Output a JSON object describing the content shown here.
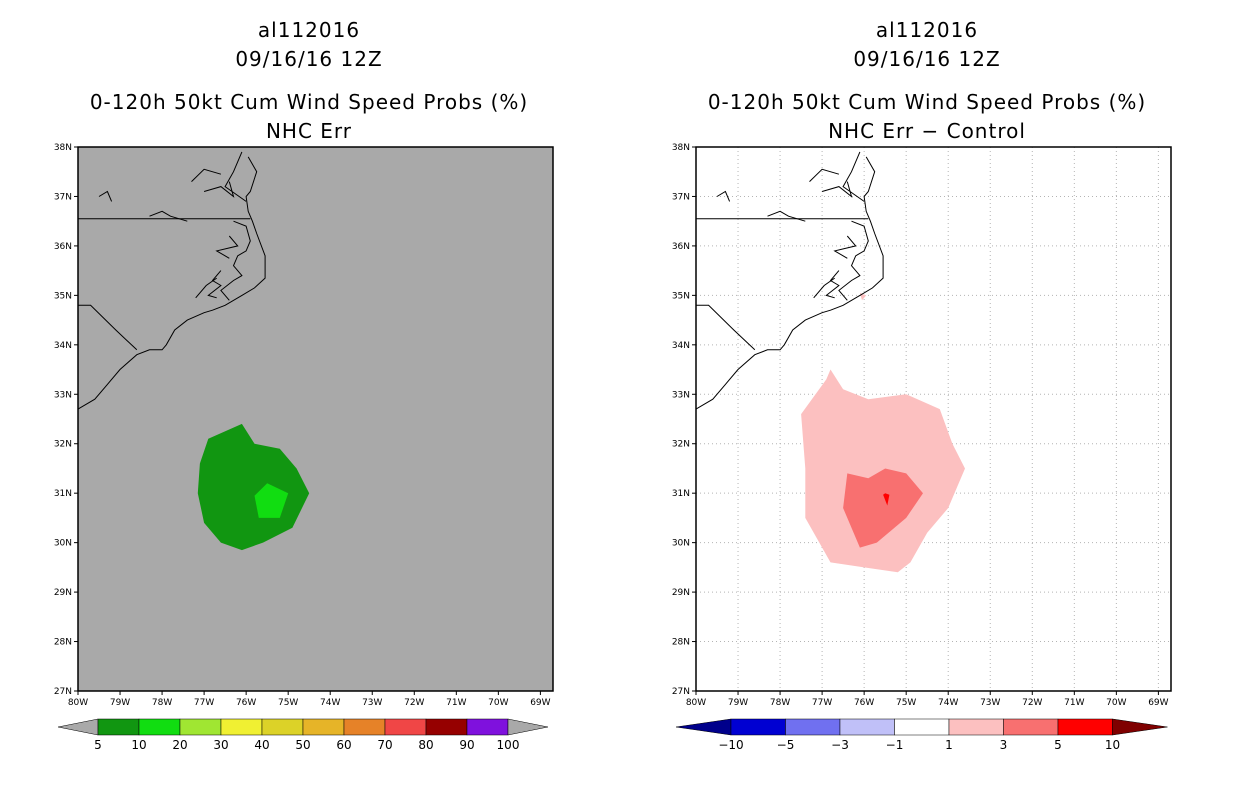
{
  "panels": [
    {
      "storm_id": "al112016",
      "date_time": "09/16/16 12Z",
      "title": "0-120h 50kt Cum Wind Speed Probs (%)",
      "subtitle": "NHC Err",
      "background_color": "#a9a9a9",
      "gridlines": false,
      "colorbar": {
        "labels": [
          "5",
          "10",
          "20",
          "30",
          "40",
          "50",
          "60",
          "70",
          "80",
          "90",
          "100"
        ],
        "colors": [
          "#119611",
          "#11dd11",
          "#a0e632",
          "#f0f032",
          "#dcd228",
          "#e6b428",
          "#e68228",
          "#f04646",
          "#960000",
          "#7f11dd"
        ],
        "end_color": "#a9a9a9"
      }
    },
    {
      "storm_id": "al112016",
      "date_time": "09/16/16 12Z",
      "title": "0-120h 50kt Cum Wind Speed Probs (%)",
      "subtitle": "NHC Err − Control",
      "background_color": "#ffffff",
      "gridlines": true,
      "colorbar": {
        "labels": [
          "−10",
          "−5",
          "−3",
          "−1",
          "1",
          "3",
          "5",
          "10"
        ],
        "colors": [
          "#0000d2",
          "#7070f0",
          "#c0c0f8",
          "#ffffff",
          "#fcc0c0",
          "#f87070",
          "#ff0000"
        ],
        "low_end_color": "#00008b",
        "high_end_color": "#7f0000"
      }
    }
  ],
  "axes": {
    "lat_labels": [
      "38N",
      "37N",
      "36N",
      "35N",
      "34N",
      "33N",
      "32N",
      "31N",
      "30N",
      "29N",
      "28N",
      "27N"
    ],
    "lon_labels": [
      "80W",
      "79W",
      "78W",
      "77W",
      "76W",
      "75W",
      "74W",
      "73W",
      "72W",
      "71W",
      "70W",
      "69W"
    ],
    "lat_range": [
      27,
      38
    ],
    "lon_range": [
      -80,
      -68.7
    ]
  },
  "map_data": {
    "left_contours": [
      {
        "level": "5-10%",
        "color": "#119611",
        "points": [
          [
            -76.9,
            32.1
          ],
          [
            -76.1,
            32.4
          ],
          [
            -75.8,
            32.0
          ],
          [
            -75.2,
            31.9
          ],
          [
            -74.8,
            31.5
          ],
          [
            -74.5,
            31.0
          ],
          [
            -74.9,
            30.3
          ],
          [
            -75.6,
            30.0
          ],
          [
            -76.1,
            29.85
          ],
          [
            -76.6,
            30.0
          ],
          [
            -77.0,
            30.4
          ],
          [
            -77.15,
            31.0
          ],
          [
            -77.1,
            31.6
          ]
        ]
      },
      {
        "level": "10-20%",
        "color": "#11dd11",
        "points": [
          [
            -75.8,
            30.95
          ],
          [
            -75.5,
            31.2
          ],
          [
            -75.0,
            31.0
          ],
          [
            -75.2,
            30.5
          ],
          [
            -75.7,
            30.5
          ]
        ]
      }
    ],
    "right_contours": [
      {
        "level": "1-3",
        "color": "#fcc0c0",
        "points": [
          [
            -77.5,
            32.6
          ],
          [
            -76.9,
            33.3
          ],
          [
            -76.8,
            33.5
          ],
          [
            -76.5,
            33.1
          ],
          [
            -75.9,
            32.9
          ],
          [
            -75.0,
            33.0
          ],
          [
            -74.2,
            32.7
          ],
          [
            -73.9,
            32.0
          ],
          [
            -73.6,
            31.5
          ],
          [
            -74.0,
            30.7
          ],
          [
            -74.5,
            30.2
          ],
          [
            -74.9,
            29.6
          ],
          [
            -75.2,
            29.4
          ],
          [
            -76.0,
            29.5
          ],
          [
            -76.8,
            29.6
          ],
          [
            -77.4,
            30.5
          ],
          [
            -77.4,
            31.5
          ]
        ]
      },
      {
        "level": "3-5",
        "color": "#f87070",
        "points": [
          [
            -76.4,
            31.4
          ],
          [
            -75.9,
            31.3
          ],
          [
            -75.5,
            31.5
          ],
          [
            -75.0,
            31.4
          ],
          [
            -74.6,
            31.0
          ],
          [
            -75.0,
            30.5
          ],
          [
            -75.7,
            30.0
          ],
          [
            -76.1,
            29.9
          ],
          [
            -76.5,
            30.7
          ]
        ]
      },
      {
        "level": "5-10",
        "color": "#ff0000",
        "points": [
          [
            -75.5,
            31.0
          ],
          [
            -75.4,
            30.97
          ],
          [
            -75.45,
            30.75
          ],
          [
            -75.55,
            30.97
          ]
        ]
      },
      {
        "level": "1-3",
        "color": "#fcc0c0",
        "points": [
          [
            -76.1,
            35.05
          ],
          [
            -75.95,
            35.0
          ],
          [
            -76.05,
            34.9
          ]
        ]
      }
    ],
    "coastline": [
      [
        [
          -75.95,
          37.8
        ],
        [
          -75.75,
          37.5
        ],
        [
          -75.9,
          37.1
        ],
        [
          -76.0,
          37.0
        ],
        [
          -75.95,
          36.7
        ],
        [
          -75.85,
          36.5
        ],
        [
          -75.75,
          36.25
        ],
        [
          -75.55,
          35.8
        ],
        [
          -75.55,
          35.5
        ],
        [
          -75.55,
          35.35
        ],
        [
          -75.8,
          35.15
        ],
        [
          -76.1,
          35.0
        ],
        [
          -76.5,
          34.8
        ],
        [
          -76.8,
          34.7
        ],
        [
          -77.0,
          34.65
        ],
        [
          -77.4,
          34.5
        ],
        [
          -77.7,
          34.3
        ],
        [
          -77.9,
          34.0
        ],
        [
          -78.0,
          33.9
        ],
        [
          -78.3,
          33.9
        ],
        [
          -78.6,
          33.8
        ],
        [
          -79.0,
          33.5
        ],
        [
          -79.3,
          33.2
        ],
        [
          -79.6,
          32.9
        ],
        [
          -80.0,
          32.7
        ]
      ]
    ],
    "sounds": [
      [
        [
          -76.3,
          36.5
        ],
        [
          -76.0,
          36.4
        ],
        [
          -75.9,
          36.1
        ],
        [
          -76.0,
          35.9
        ],
        [
          -76.2,
          35.8
        ],
        [
          -76.3,
          35.6
        ],
        [
          -76.1,
          35.4
        ],
        [
          -76.3,
          35.3
        ],
        [
          -76.6,
          35.1
        ],
        [
          -76.4,
          34.9
        ]
      ],
      [
        [
          -76.6,
          35.5
        ],
        [
          -76.8,
          35.3
        ],
        [
          -76.6,
          35.2
        ],
        [
          -76.9,
          35.0
        ],
        [
          -76.7,
          34.95
        ]
      ],
      [
        [
          -77.2,
          34.95
        ],
        [
          -76.95,
          35.2
        ],
        [
          -76.7,
          35.35
        ]
      ],
      [
        [
          -76.4,
          36.2
        ],
        [
          -76.2,
          36.0
        ],
        [
          -76.7,
          35.9
        ],
        [
          -76.4,
          35.75
        ]
      ],
      [
        [
          -77.0,
          37.1
        ],
        [
          -76.6,
          37.2
        ],
        [
          -76.3,
          37.0
        ],
        [
          -76.4,
          37.3
        ]
      ],
      [
        [
          -76.1,
          37.9
        ],
        [
          -76.3,
          37.5
        ],
        [
          -76.5,
          37.2
        ],
        [
          -76.0,
          36.9
        ]
      ],
      [
        [
          -77.3,
          37.3
        ],
        [
          -77.0,
          37.55
        ],
        [
          -76.6,
          37.45
        ]
      ],
      [
        [
          -78.3,
          36.6
        ],
        [
          -78.0,
          36.7
        ],
        [
          -77.8,
          36.6
        ],
        [
          -77.4,
          36.5
        ]
      ],
      [
        [
          -79.5,
          37.0
        ],
        [
          -79.3,
          37.1
        ],
        [
          -79.2,
          36.9
        ]
      ]
    ],
    "state_borders": [
      [
        [
          -80.0,
          36.55
        ],
        [
          -75.9,
          36.55
        ]
      ],
      [
        [
          -80.0,
          34.8
        ],
        [
          -79.7,
          34.8
        ],
        [
          -79.1,
          34.3
        ],
        [
          -78.6,
          33.9
        ]
      ]
    ]
  }
}
